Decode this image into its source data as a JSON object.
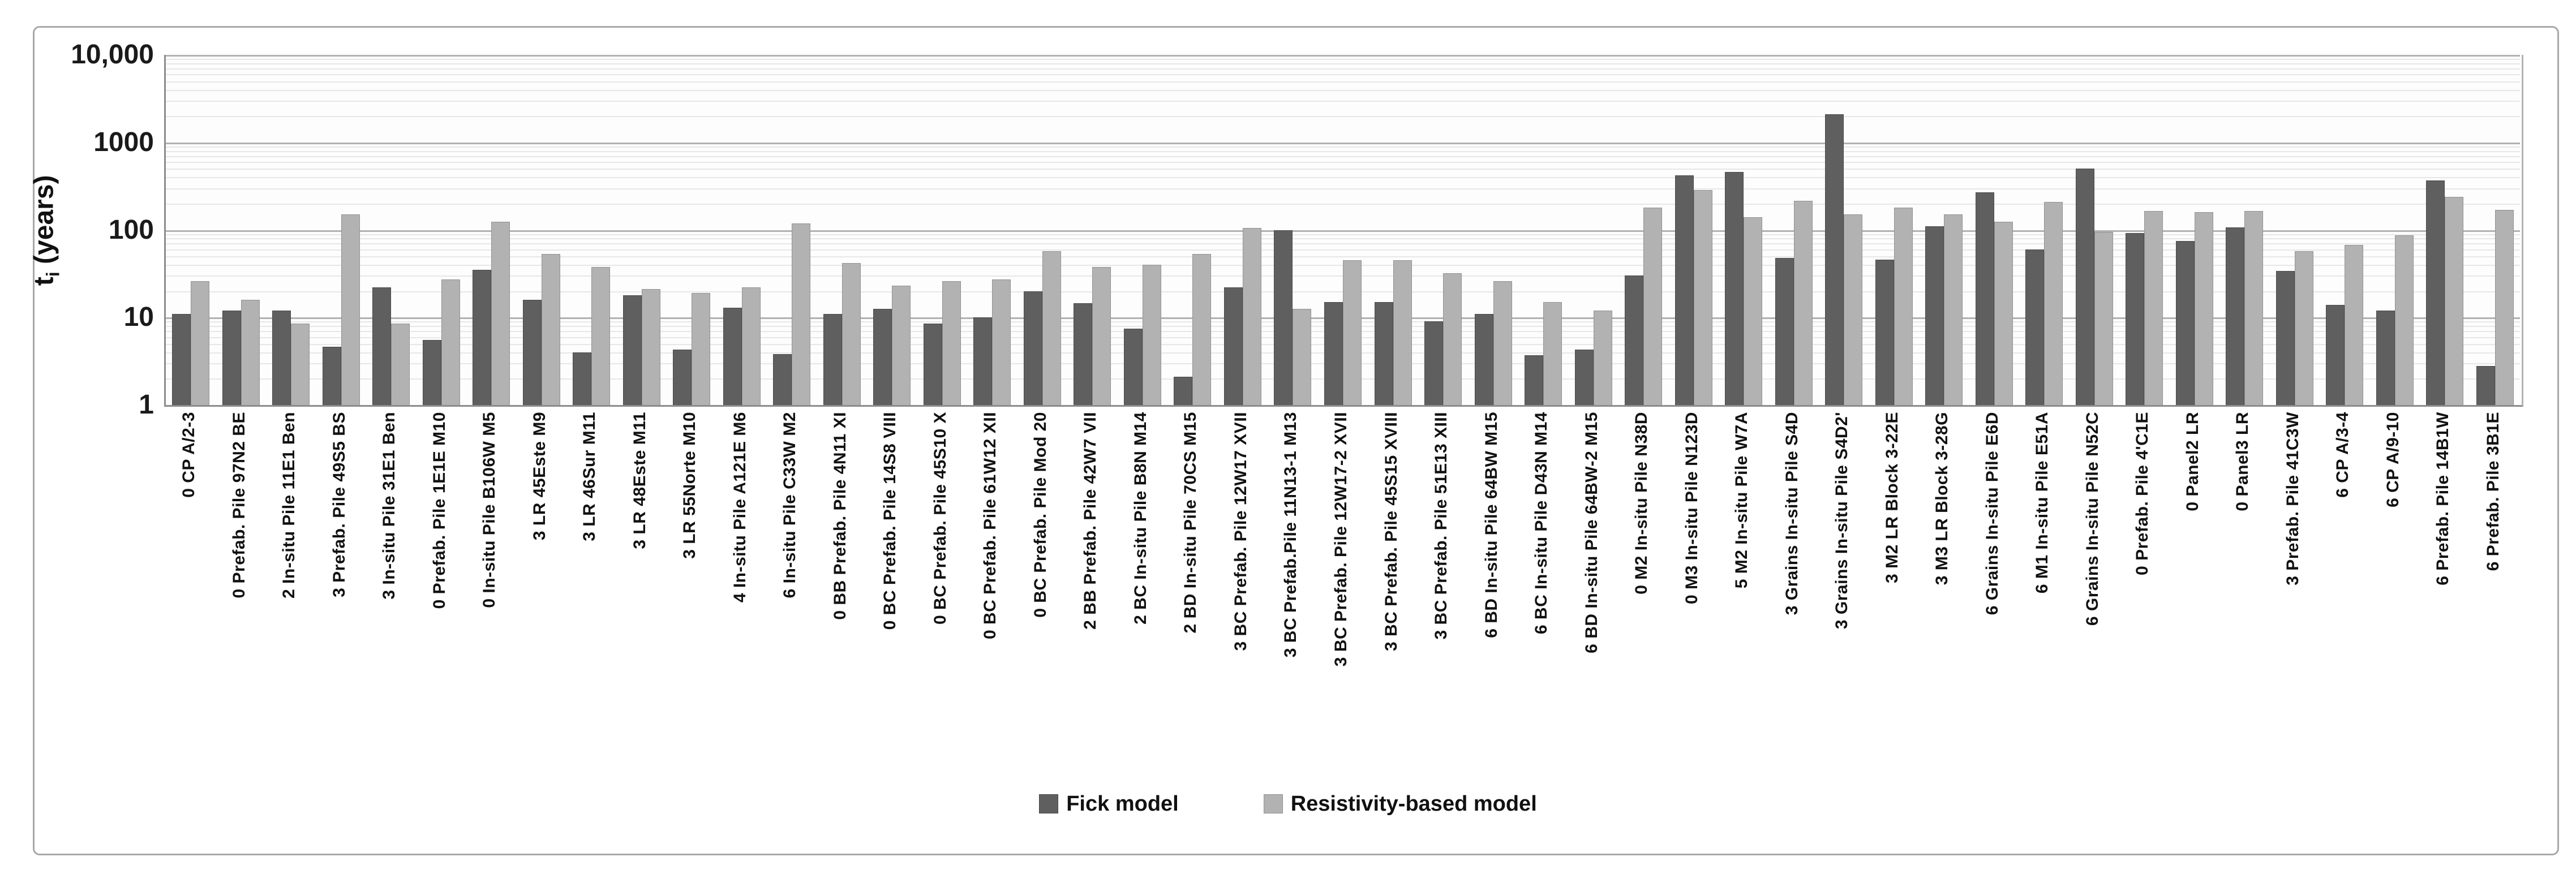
{
  "chart_data": {
    "type": "bar",
    "title": "",
    "xlabel": "",
    "ylabel": "t_i (years)",
    "ylabel_parts": {
      "base": "t",
      "subscript": "i",
      "rest": " (years)"
    },
    "y_scale": "log10",
    "ylim": [
      1,
      10000
    ],
    "ytick_labels": [
      "10,000",
      "1000",
      "100",
      "10",
      "1"
    ],
    "ytick_values": [
      10000,
      1000,
      100,
      10,
      1
    ],
    "grid": "horizontal major decade lines with log minor lines, vertical grid off",
    "legend_position": "bottom-center",
    "categories": [
      "0 CP A/2-3",
      "0 Prefab. Pile 97N2 BE",
      "2 In-situ Pile 11E1 Ben",
      "3 Prefab. Pile 49S5 BS",
      "3 In-situ Pile 31E1 Ben",
      "0 Prefab. Pile 1E1E M10",
      "0 In-situ Pile B106W M5",
      "3 LR 45Este M9",
      "3 LR 46Sur M11",
      "3 LR 48Este M11",
      "3 LR 55Norte M10",
      "4 In-situ Pile A121E M6",
      "6 In-situ Pile C33W M2",
      "0 BB Prefab. Pile 4N11 XI",
      "0 BC Prefab. Pile 14S8 VIII",
      "0 BC Prefab. Pile 45S10 X",
      "0 BC Prefab. Pile 61W12 XII",
      "0 BC Prefab. Pile Mod 20",
      "2 BB Prefab. Pile 42W7 VII",
      "2 BC In-situ Pile B8N M14",
      "2 BD In-situ Pile 70CS M15",
      "3 BC Prefab. Pile 12W17 XVII",
      "3 BC Prefab.Pile 11N13-1 M13",
      "3 BC Prefab. Pile 12W17-2 XVII",
      "3 BC Prefab. Pile 45S15 XVIII",
      "3 BC Prefab. Pile 51E13 XIII",
      "6 BD In-situ Pile 64BW M15",
      "6 BC In-situ Pile D43N M14",
      "6 BD In-situ Pile 64BW-2 M15",
      "0 M2 In-situ Pile N38D",
      "0 M3 In-situ Pile N123D",
      "5 M2 In-situ Pile W7A",
      "3 Grains In-situ Pile S4D",
      "3 Grains In-situ Pile S4D2'",
      "3 M2 LR Block 3-22E",
      "3 M3 LR Block 3-28G",
      "6 Grains In-situ Pile E6D",
      "6 M1 In-situ Pile E51A",
      "6 Grains In-situ Pile N52C",
      "0 Prefab. Pile 4'C1E",
      "0 Panel2 LR",
      "0 Panel3 LR",
      "3 Prefab. Pile 41C3W",
      "6 CP A/3-4",
      "6 CP A/9-10",
      "6 Prefab. Pile 14B1W",
      "6 Prefab. Pile 3B1E"
    ],
    "series": [
      {
        "name": "Fick model",
        "color": "#5f5f5f",
        "border_color": "#494949",
        "values": [
          11,
          12,
          12,
          4.6,
          22,
          5.5,
          35,
          16,
          4,
          18,
          4.3,
          13,
          3.8,
          11,
          12.5,
          8.5,
          10,
          20,
          14.5,
          7.5,
          2.1,
          22,
          100,
          15,
          15,
          9,
          11,
          3.7,
          4.3,
          30,
          420,
          460,
          48,
          2100,
          46,
          110,
          270,
          60,
          500,
          92,
          75,
          107,
          34,
          14,
          12,
          370,
          2.8
        ]
      },
      {
        "name": "Resistivity-based model",
        "color": "#b2b2b2",
        "border_color": "#929292",
        "values": [
          26,
          16,
          8.5,
          150,
          8.5,
          27,
          125,
          53,
          38,
          21,
          19,
          22,
          118,
          42,
          23,
          26,
          27,
          57,
          38,
          40,
          53,
          105,
          12.5,
          45,
          45,
          32,
          26,
          15,
          12,
          180,
          285,
          140,
          215,
          150,
          180,
          150,
          125,
          210,
          95,
          165,
          160,
          165,
          57,
          67,
          87,
          240,
          170
        ]
      }
    ]
  },
  "colors": {
    "figure_border": "#a8a8a8",
    "axis_frame": "#8c8c8c",
    "major_gridline": "#b2b2b2",
    "minor_gridline": "#e7e7e7",
    "text": "#111111",
    "background": "#ffffff"
  }
}
